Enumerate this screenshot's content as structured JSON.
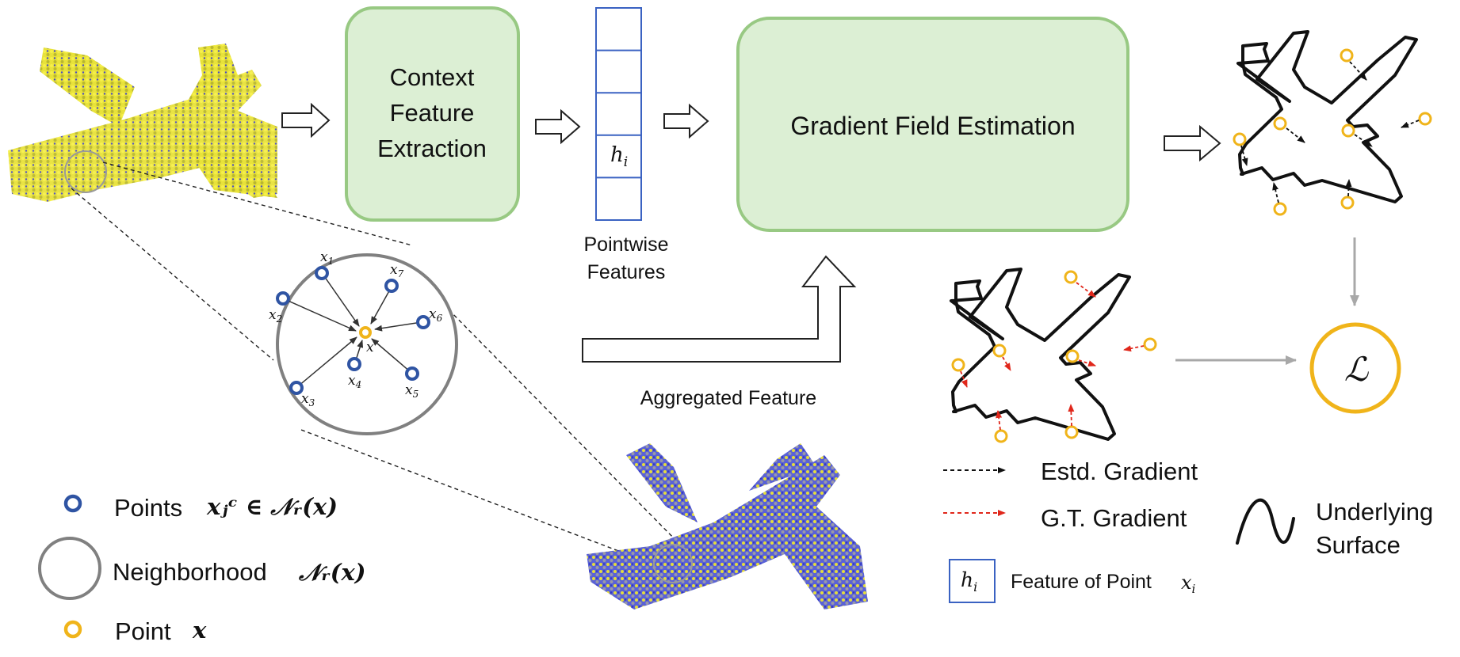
{
  "colors": {
    "box_fill": "#dcefd4",
    "box_stroke": "#98c983",
    "feature_blue": "#3a62c2",
    "point_blue": "#2f54a3",
    "point_yellow": "#f0b41a",
    "gt_red": "#e0271b",
    "arrow_gray": "#a8a8a8",
    "circle_gray": "#7f7f7f"
  },
  "boxes": {
    "context_line1": "Context",
    "context_line2": "Feature",
    "context_line3": "Extraction",
    "gradient": "Gradient Field Estimation"
  },
  "features": {
    "cell_label": "h",
    "cell_sub": "i",
    "caption_line1": "Pointwise",
    "caption_line2": "Features"
  },
  "aggregated_label": "Aggregated Feature",
  "neighborhood": {
    "x1": "x",
    "s1": "1",
    "x2": "x",
    "s2": "2",
    "x3": "x",
    "s3": "3",
    "x4": "x",
    "s4": "4",
    "x5": "x",
    "s5": "5",
    "x6": "x",
    "s6": "6",
    "x7": "x",
    "s7": "7",
    "center": "x"
  },
  "loss_symbol": "ℒ",
  "legend_left": {
    "points_label": "Points",
    "points_math": "xⱼᶜ ∈ 𝒩ᵣ(x)",
    "neighborhood_label": "Neighborhood",
    "neighborhood_math": "𝒩ᵣ(x)",
    "point_label": "Point",
    "point_math": "x"
  },
  "legend_right": {
    "estd": "Estd. Gradient",
    "gt": "G.T. Gradient",
    "underlying_line1": "Underlying",
    "underlying_line2": "Surface",
    "feature_label": "Feature of Point",
    "feature_math": "x",
    "feature_sub": "i",
    "feature_cell": "h",
    "feature_cell_sub": "i"
  },
  "icons": [
    "point-cloud-airplane",
    "airplane-outline",
    "hollow-arrow",
    "loss-circle"
  ]
}
